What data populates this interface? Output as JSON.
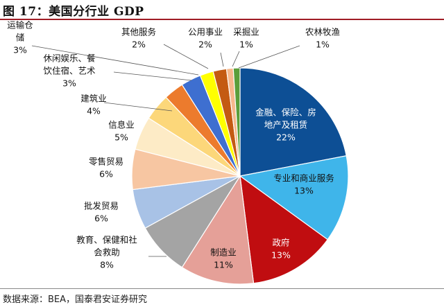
{
  "header": {
    "title": "图 17：美国分行业 GDP",
    "source": "数据来源：BEA，国泰君安证券研究"
  },
  "chart_data": {
    "type": "pie",
    "title": "图 17：美国分行业 GDP",
    "unit": "%",
    "slices": [
      {
        "label": "金融、保险、房地产及租赁",
        "lines": [
          "金融、保险、房",
          "地产及租赁"
        ],
        "value": 22,
        "display": "22%",
        "color": "#0d4f95",
        "labelColor": "#ffffff"
      },
      {
        "label": "专业和商业服务",
        "lines": [
          "专业和商业服务"
        ],
        "value": 13,
        "display": "13%",
        "color": "#3fb5ea",
        "labelColor": "#111111"
      },
      {
        "label": "政府",
        "lines": [
          "政府"
        ],
        "value": 13,
        "display": "13%",
        "color": "#c00d10",
        "labelColor": "#ffffff"
      },
      {
        "label": "制造业",
        "lines": [
          "制造业"
        ],
        "value": 11,
        "display": "11%",
        "color": "#e5a098",
        "labelColor": "#111111"
      },
      {
        "label": "教育、保健和社会救助",
        "lines": [
          "教育、保健和社",
          "会救助"
        ],
        "value": 8,
        "display": "8%",
        "color": "#a4a4a4",
        "labelColor": "#111111"
      },
      {
        "label": "批发贸易",
        "lines": [
          "批发贸易"
        ],
        "value": 6,
        "display": "6%",
        "color": "#a8c2e6",
        "labelColor": "#111111"
      },
      {
        "label": "零售贸易",
        "lines": [
          "零售贸易"
        ],
        "value": 6,
        "display": "6%",
        "color": "#f7c6a2",
        "labelColor": "#111111"
      },
      {
        "label": "信息业",
        "lines": [
          "信息业"
        ],
        "value": 5,
        "display": "5%",
        "color": "#fdebc6",
        "labelColor": "#111111"
      },
      {
        "label": "建筑业",
        "lines": [
          "建筑业"
        ],
        "value": 4,
        "display": "4%",
        "color": "#fcd77a",
        "labelColor": "#111111"
      },
      {
        "label": "休闲娱乐、餐饮住宿、艺术",
        "lines": [
          "休闲娱乐、餐",
          "饮住宿、艺术"
        ],
        "value": 3,
        "display": "3%",
        "color": "#ec7b2d",
        "labelColor": "#111111"
      },
      {
        "label": "运输仓储",
        "lines": [
          "运输仓",
          "储"
        ],
        "value": 3,
        "display": "3%",
        "color": "#3e6fd0",
        "labelColor": "#111111"
      },
      {
        "label": "其他服务",
        "lines": [
          "其他服务"
        ],
        "value": 2,
        "display": "2%",
        "color": "#ffff00",
        "labelColor": "#111111"
      },
      {
        "label": "公用事业",
        "lines": [
          "公用事业"
        ],
        "value": 2,
        "display": "2%",
        "color": "#c45a12",
        "labelColor": "#111111"
      },
      {
        "label": "采掘业",
        "lines": [
          "采掘业"
        ],
        "value": 1,
        "display": "1%",
        "color": "#f6b88c",
        "labelColor": "#111111"
      },
      {
        "label": "农林牧渔",
        "lines": [
          "农林牧渔"
        ],
        "value": 1,
        "display": "1%",
        "color": "#5a9e3a",
        "labelColor": "#111111"
      }
    ]
  }
}
